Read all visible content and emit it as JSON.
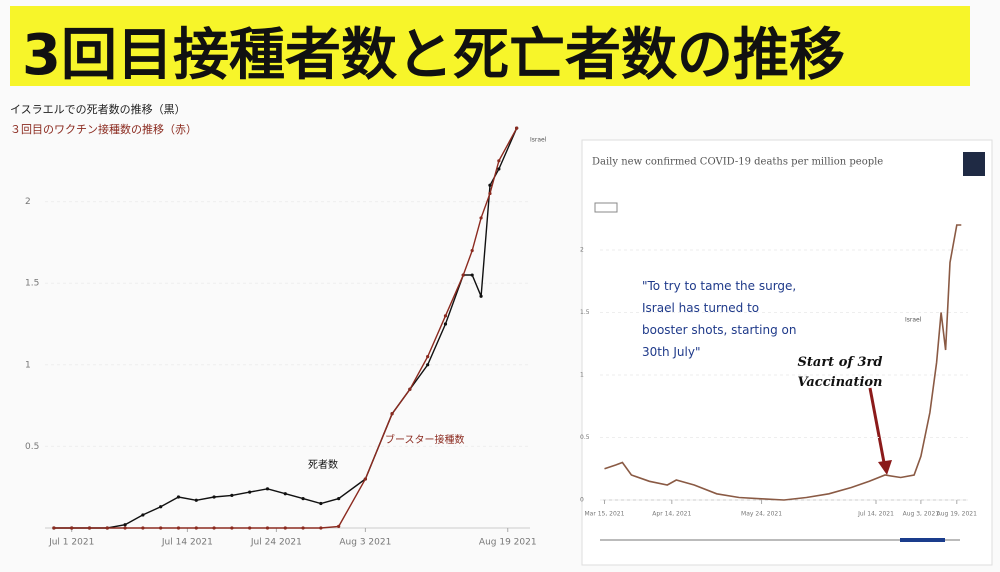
{
  "page_title": "3回目接種者数と死亡者数の推移",
  "chart_data": [
    {
      "type": "line",
      "legend_lines": [
        "イスラエルでの死者数の推移（黒）",
        "３回目のワクチン接種数の推移（赤）"
      ],
      "annotations": [
        "死者数",
        "ブースター接種数",
        "Israel"
      ],
      "x": [
        -2,
        0,
        2,
        4,
        6,
        8,
        10,
        12,
        14,
        16,
        18,
        20,
        22,
        24,
        26,
        28,
        30,
        33,
        36,
        38,
        40,
        42,
        44,
        45,
        46,
        47,
        48,
        50
      ],
      "xlim": [
        -3,
        51.5
      ],
      "xticks": [
        {
          "value": 0,
          "label": "Jul 1 2021"
        },
        {
          "value": 13,
          "label": "Jul 14 2021"
        },
        {
          "value": 23,
          "label": "Jul 24 2021"
        },
        {
          "value": 33,
          "label": "Aug 3 2021"
        },
        {
          "value": 49,
          "label": "Aug 19 2021"
        }
      ],
      "ylim": [
        0,
        2.5
      ],
      "yticks": [
        0.5,
        1,
        1.5,
        2
      ],
      "series": [
        {
          "name": "死者数",
          "color": "#111111",
          "values": [
            0,
            0,
            0,
            0,
            0.02,
            0.08,
            0.13,
            0.19,
            0.17,
            0.19,
            0.2,
            0.22,
            0.24,
            0.21,
            0.18,
            0.15,
            0.18,
            0.3,
            0.7,
            0.85,
            1.0,
            1.25,
            1.55,
            1.55,
            1.42,
            2.1,
            2.2,
            2.45
          ]
        },
        {
          "name": "ブースター接種数",
          "color": "#8b2a1f",
          "values": [
            0,
            0,
            0,
            0,
            0,
            0,
            0,
            0,
            0,
            0,
            0,
            0,
            0,
            0,
            0,
            0,
            0.01,
            0.3,
            0.7,
            0.85,
            1.05,
            1.3,
            1.55,
            1.7,
            1.9,
            2.05,
            2.25,
            2.45
          ]
        }
      ]
    },
    {
      "type": "line",
      "title": "Daily new confirmed COVID-19 deaths per million people",
      "annotations": [
        "\"To try to tame the surge, Israel has turned to booster shots, starting on 30th July\"",
        "Start of 3rd Vaccination",
        "Israel"
      ],
      "x": [
        0,
        5,
        8,
        12,
        20,
        28,
        32,
        40,
        50,
        60,
        70,
        80,
        90,
        100,
        110,
        118,
        125,
        132,
        138,
        141,
        145,
        148,
        150,
        152,
        154,
        157,
        159
      ],
      "xlim": [
        -2,
        162
      ],
      "xticks": [
        {
          "value": 0,
          "label": "Mar 15, 2021"
        },
        {
          "value": 30,
          "label": "Apr 14, 2021"
        },
        {
          "value": 70,
          "label": "May 24, 2021"
        },
        {
          "value": 121,
          "label": "Jul 14, 2021"
        },
        {
          "value": 141,
          "label": "Aug 3, 2021"
        },
        {
          "value": 157,
          "label": "Aug 19, 2021"
        }
      ],
      "ylim": [
        0,
        2.4
      ],
      "yticks": [
        0,
        0.5,
        1,
        1.5,
        2
      ],
      "series": [
        {
          "name": "Israel",
          "color": "#8a5a44",
          "values": [
            0.25,
            0.28,
            0.3,
            0.2,
            0.15,
            0.12,
            0.16,
            0.12,
            0.05,
            0.02,
            0.01,
            0.0,
            0.02,
            0.05,
            0.1,
            0.15,
            0.2,
            0.18,
            0.2,
            0.35,
            0.7,
            1.1,
            1.5,
            1.2,
            1.9,
            2.2,
            2.2
          ]
        }
      ]
    }
  ]
}
